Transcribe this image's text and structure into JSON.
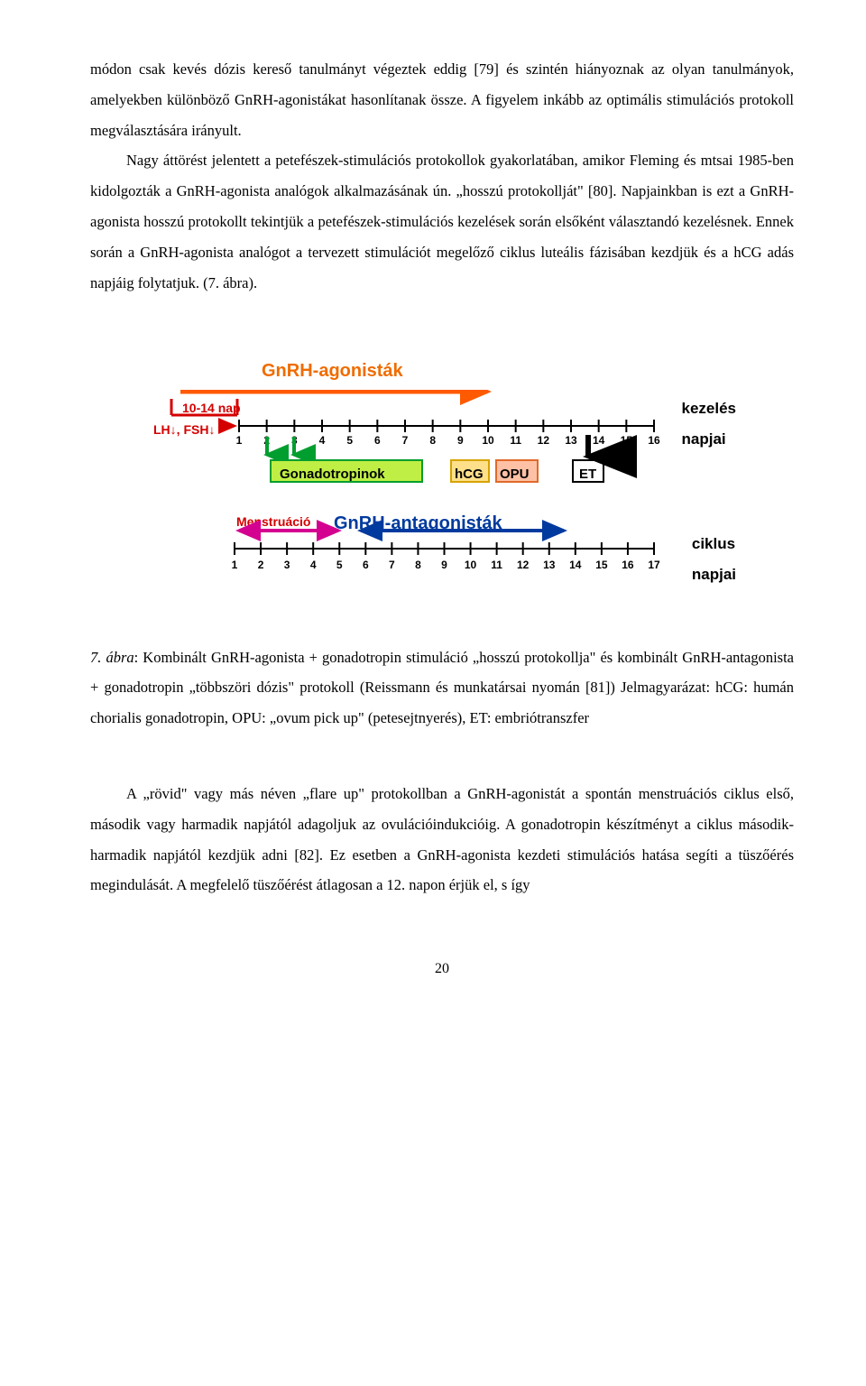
{
  "para1": "módon csak kevés dózis kereső tanulmányt végeztek eddig [79] és szintén hiányoznak az olyan tanulmányok, amelyekben különböző GnRH-agonistákat hasonlítanak össze. A figyelem inkább az optimális stimulációs protokoll megválasztására irányult.",
  "para2": "Nagy áttörést jelentett a petefészek-stimulációs protokollok gyakorlatában, amikor Fleming és mtsai 1985-ben kidolgozták a GnRH-agonista analógok alkalmazásának ún. „hosszú protokollját\" [80]. Napjainkban is ezt a GnRH-agonista hosszú protokollt tekintjük a petefészek-stimulációs kezelések során elsőként választandó kezelésnek. Ennek során a GnRH-agonista analógot a tervezett stimulációt megelőző ciklus luteális fázisában kezdjük és a hCG adás napjáig folytatjuk. (7. ábra).",
  "diagram": {
    "agonist_title": "GnRH-agonisták",
    "duration_label": "10-14 nap",
    "lhfsh_label": "LH↓, FSH↓",
    "kezeles_label": "kezelés",
    "napjai_label": "napjai",
    "gonadotropin_label": "Gonadotropinok",
    "hcg_label": "hCG",
    "opu_label": "OPU",
    "et_label": "ET",
    "menstruacio_label": "Menstruáció",
    "antagonist_title": "GnRH-antagonisták",
    "ciklus_label": "ciklus",
    "ticks_top": [
      1,
      2,
      3,
      4,
      5,
      6,
      7,
      8,
      9,
      10,
      11,
      12,
      13,
      14,
      15,
      16
    ],
    "ticks_bottom": [
      1,
      2,
      3,
      4,
      5,
      6,
      7,
      8,
      9,
      10,
      11,
      12,
      13,
      14,
      15,
      16,
      17
    ],
    "colors": {
      "orange": "#ef6c00",
      "deeporange": "#ff5a00",
      "red": "#d40000",
      "green_fill": "#bfef45",
      "green_stroke": "#009e2e",
      "hcg_fill": "#ffe08a",
      "opu_fill": "#ffc1a5",
      "et_stroke": "#000000",
      "blue": "#003a9e",
      "magenta": "#d4008f",
      "black": "#000000"
    }
  },
  "caption": "7. ábra: Kombinált GnRH-agonista + gonadotropin stimuláció „hosszú protokollja\" és kombinált GnRH-antagonista + gonadotropin „többszöri dózis\" protokoll (Reissmann és munkatársai nyomán [81]) Jelmagyarázat: hCG: humán chorialis gonadotropin, OPU: „ovum pick up\" (petesejtnyerés), ET: embriótranszfer",
  "para3": "A „rövid\" vagy más néven „flare up\" protokollban a GnRH-agonistát a spontán menstruációs ciklus első, második vagy harmadik napjától adagoljuk az ovulációindukcióig. A gonadotropin készítményt a ciklus második-harmadik napjától kezdjük adni [82]. Ez esetben a GnRH-agonista kezdeti stimulációs hatása segíti a tüszőérés megindulását. A megfelelő tüszőérést átlagosan a 12. napon érjük el, s így",
  "page_number": "20"
}
